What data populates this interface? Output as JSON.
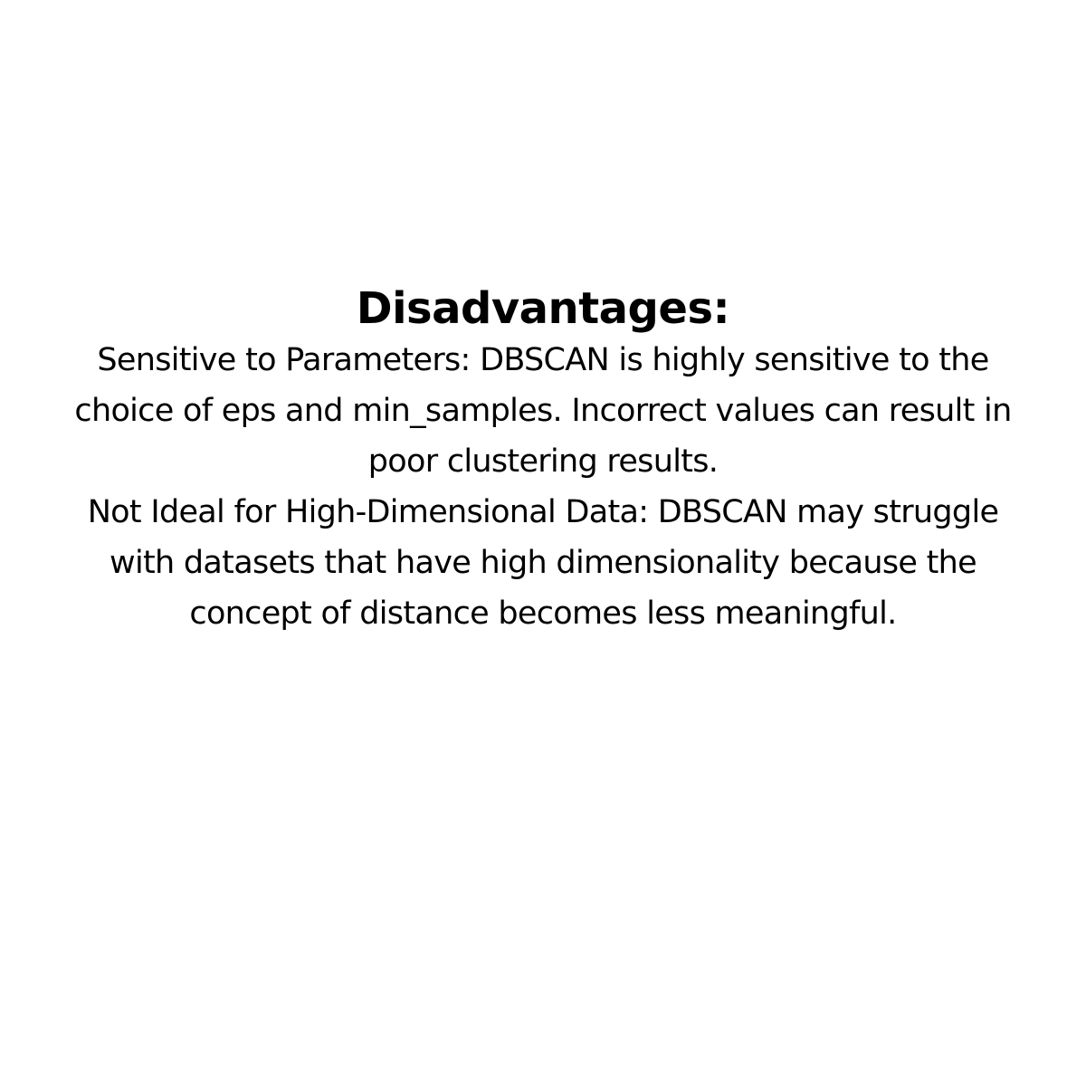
{
  "title": "Disadvantages:",
  "lines": [
    "Sensitive to Parameters: DBSCAN is highly sensitive to the",
    "choice of eps and min_samples. Incorrect values can result in",
    "poor clustering results.",
    "Not Ideal for High-Dimensional Data: DBSCAN may struggle",
    "with datasets that have high dimensionality because the",
    "concept of distance becomes less meaningful."
  ]
}
